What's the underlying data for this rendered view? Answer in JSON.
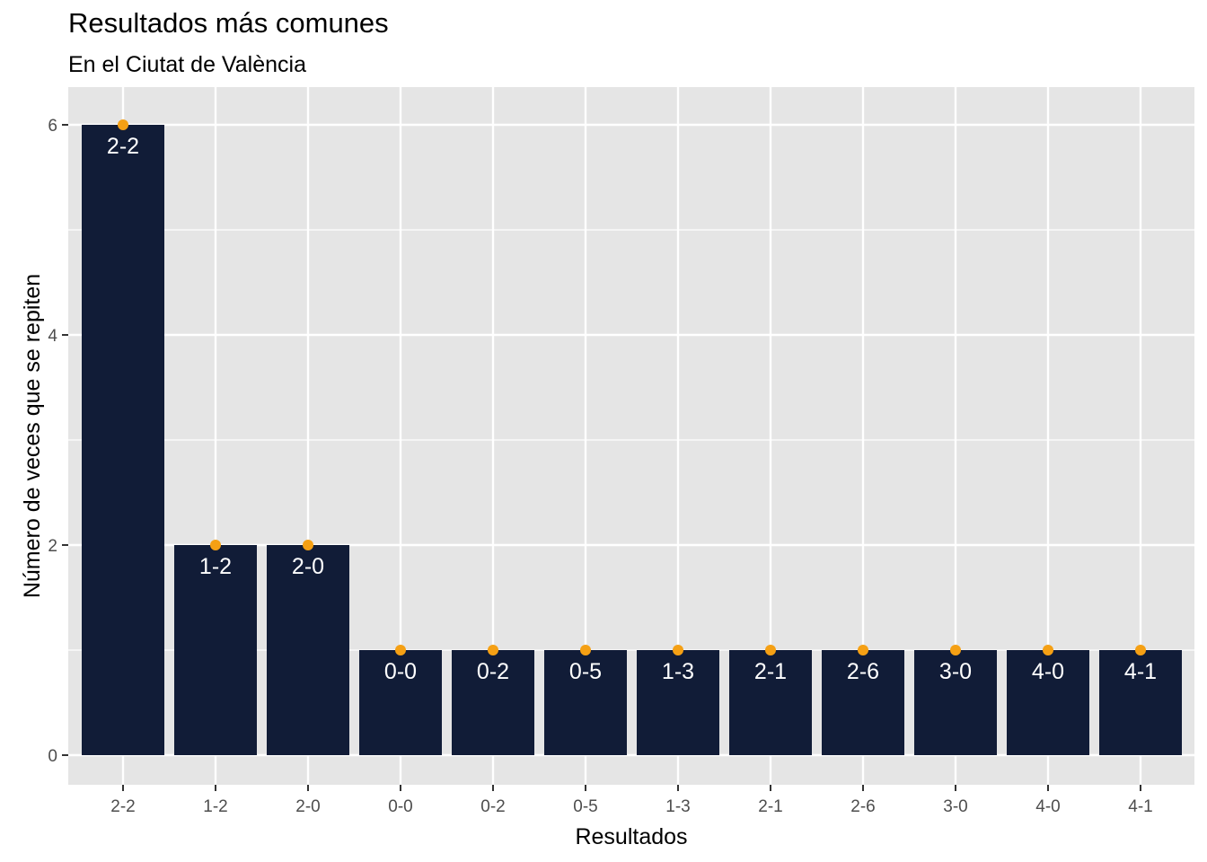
{
  "chart_data": {
    "type": "bar",
    "title": "Resultados más comunes",
    "subtitle": "En el Ciutat de València",
    "xlabel": "Resultados",
    "ylabel": "Número de veces que se repiten",
    "categories": [
      "2-2",
      "1-2",
      "2-0",
      "0-0",
      "0-2",
      "0-5",
      "1-3",
      "2-1",
      "2-6",
      "3-0",
      "4-0",
      "4-1"
    ],
    "values": [
      6,
      2,
      2,
      1,
      1,
      1,
      1,
      1,
      1,
      1,
      1,
      1
    ],
    "ylim": [
      0,
      6
    ],
    "yticks": [
      0,
      2,
      4,
      6
    ],
    "grid": true,
    "legend": "none",
    "colors": {
      "bar": "#111c37",
      "point": "#f5a014",
      "panel": "#e5e5e5",
      "grid": "#ffffff",
      "bar_label": "#ffffff"
    }
  }
}
